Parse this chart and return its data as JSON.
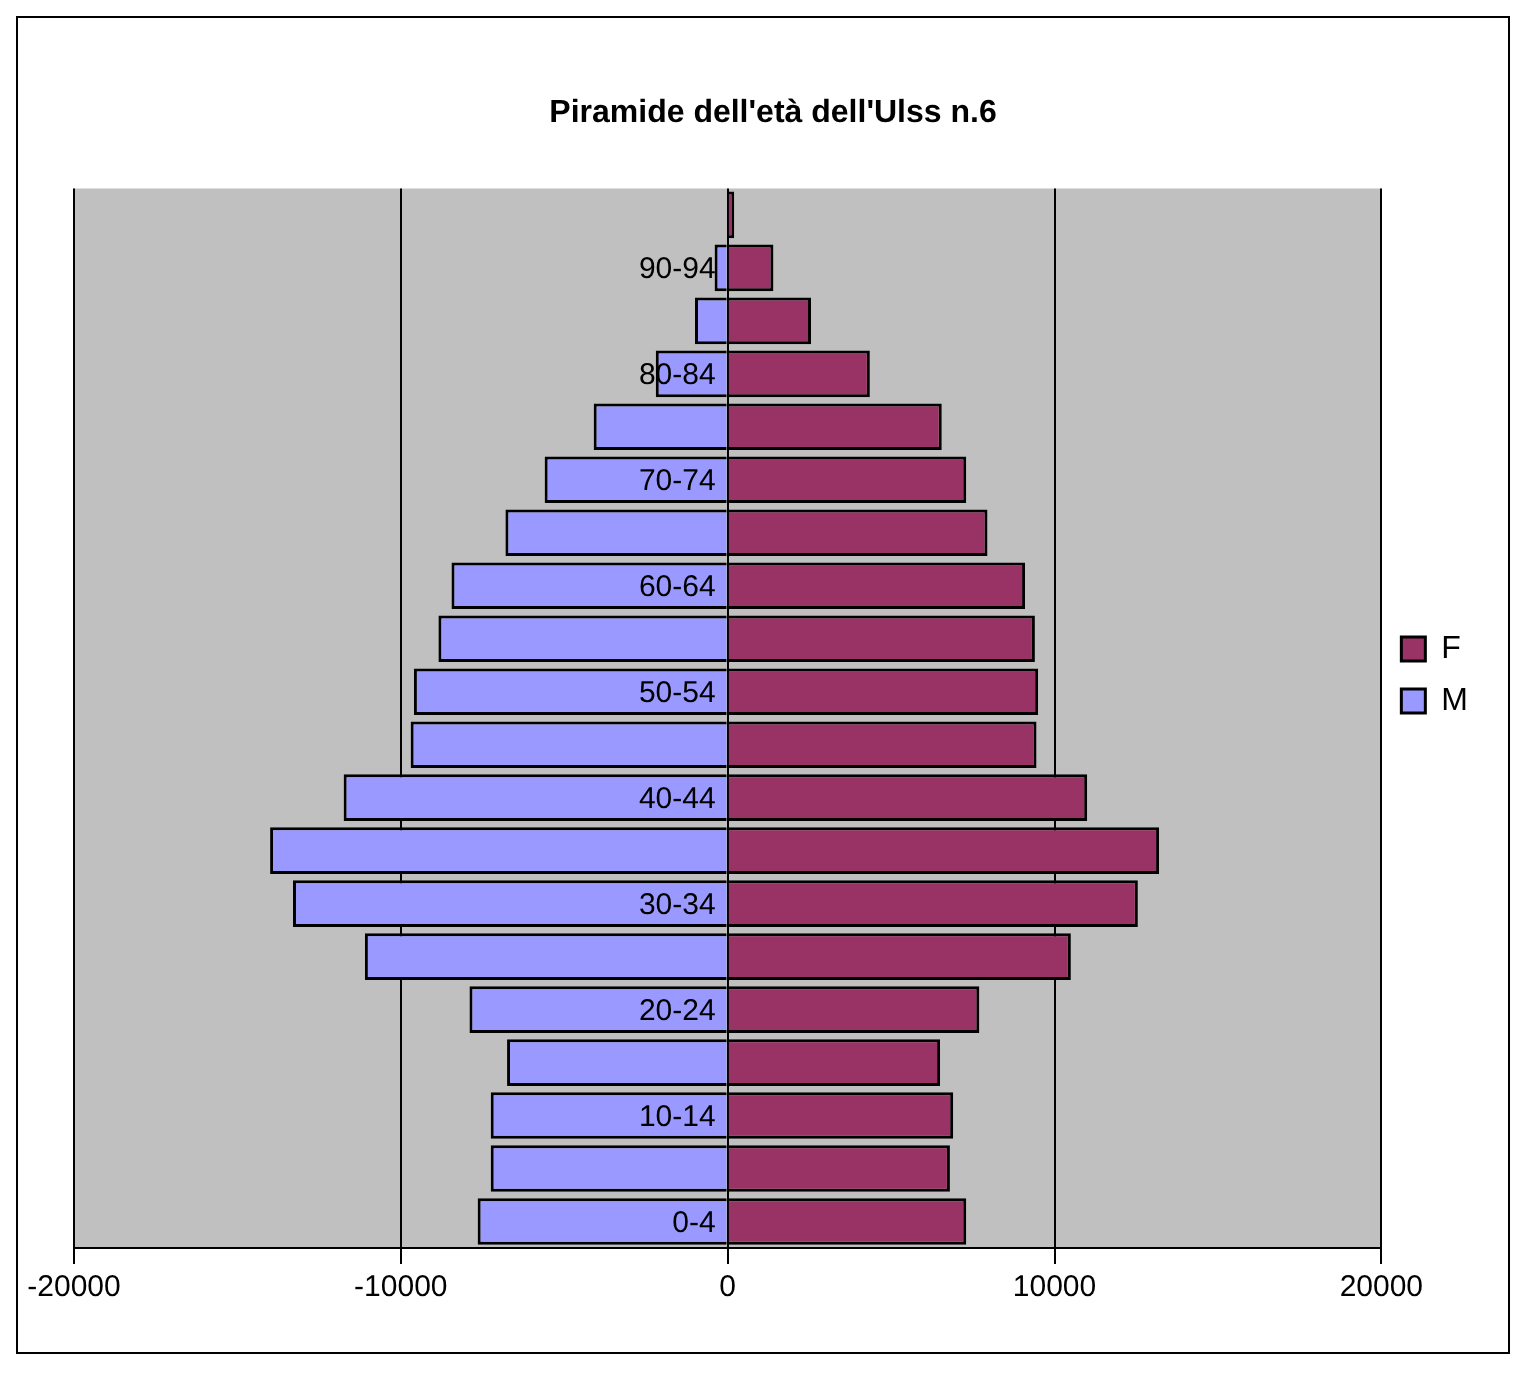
{
  "chart_data": {
    "type": "bar",
    "orientation": "horizontal",
    "stacked": true,
    "title": "Piramide dell'età dell'Ulss n.6",
    "categories": [
      null,
      "90-94",
      null,
      "80-84",
      null,
      "70-74",
      null,
      "60-64",
      null,
      "50-54",
      null,
      "40-44",
      null,
      "30-34",
      null,
      "20-24",
      null,
      "10-14",
      null,
      "0-4"
    ],
    "series": [
      {
        "name": "F",
        "color": "#993366",
        "values": [
          200,
          1400,
          2550,
          4350,
          6550,
          7300,
          7950,
          9100,
          9400,
          9500,
          9450,
          11000,
          13200,
          12550,
          10500,
          7700,
          6500,
          6900,
          6800,
          7300
        ]
      },
      {
        "name": "M",
        "color": "#9999ff",
        "values": [
          null,
          -400,
          -1000,
          -2200,
          -4100,
          -5600,
          -6800,
          -8450,
          -8850,
          -9600,
          -9700,
          -11750,
          -14000,
          -13300,
          -11100,
          -7900,
          -6750,
          -7250,
          -7250,
          -7650
        ]
      }
    ],
    "xlim": [
      -20000,
      20000
    ],
    "xticks": [
      -20000,
      -10000,
      0,
      10000,
      20000
    ],
    "grid": "x",
    "legend": "right"
  }
}
